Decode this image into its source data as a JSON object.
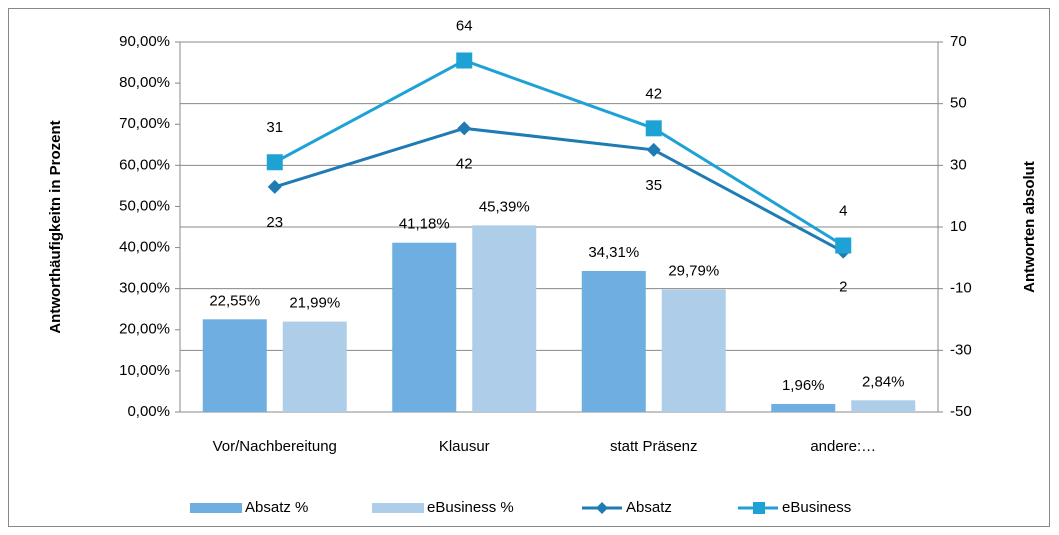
{
  "chart_data": {
    "type": "bar",
    "categories": [
      "Vor/Nachbereitung",
      "Klausur",
      "statt Präsenz",
      "andere:…"
    ],
    "series": [
      {
        "name": "Absatz %",
        "color": "#6eaee0",
        "values": [
          22.55,
          41.18,
          34.31,
          1.96
        ],
        "value_labels": [
          "22,55%",
          "41,18%",
          "34,31%",
          "1,96%"
        ]
      },
      {
        "name": "eBusiness %",
        "color": "#aecde9",
        "values": [
          21.99,
          45.39,
          29.79,
          2.84
        ],
        "value_labels": [
          "21,99%",
          "45,39%",
          "29,79%",
          "2,84%"
        ]
      },
      {
        "name": "Absatz",
        "type": "line",
        "axis": "y2",
        "marker": "diamond",
        "color": "#1f7bb3",
        "values": [
          23,
          42,
          35,
          2
        ]
      },
      {
        "name": "eBusiness",
        "type": "line",
        "axis": "y2",
        "marker": "square",
        "color": "#1ea2d6",
        "values": [
          31,
          64,
          42,
          4
        ]
      }
    ],
    "ylabel": "Antworthäufigkeitn in Prozent",
    "y2label": "Antworten absolut",
    "ylim": [
      0,
      90
    ],
    "yticks": [
      {
        "value": 0,
        "label": "0,00%"
      },
      {
        "value": 10,
        "label": "10,00%"
      },
      {
        "value": 20,
        "label": "20,00%"
      },
      {
        "value": 30,
        "label": "30,00%"
      },
      {
        "value": 40,
        "label": "40,00%"
      },
      {
        "value": 50,
        "label": "50,00%"
      },
      {
        "value": 60,
        "label": "60,00%"
      },
      {
        "value": 70,
        "label": "70,00%"
      },
      {
        "value": 80,
        "label": "80,00%"
      },
      {
        "value": 90,
        "label": "90,00%"
      }
    ],
    "y2lim": [
      -50,
      70
    ],
    "y2ticks": [
      -50,
      -30,
      -10,
      10,
      30,
      50,
      70
    ],
    "grid": true,
    "legend": "bottom"
  }
}
